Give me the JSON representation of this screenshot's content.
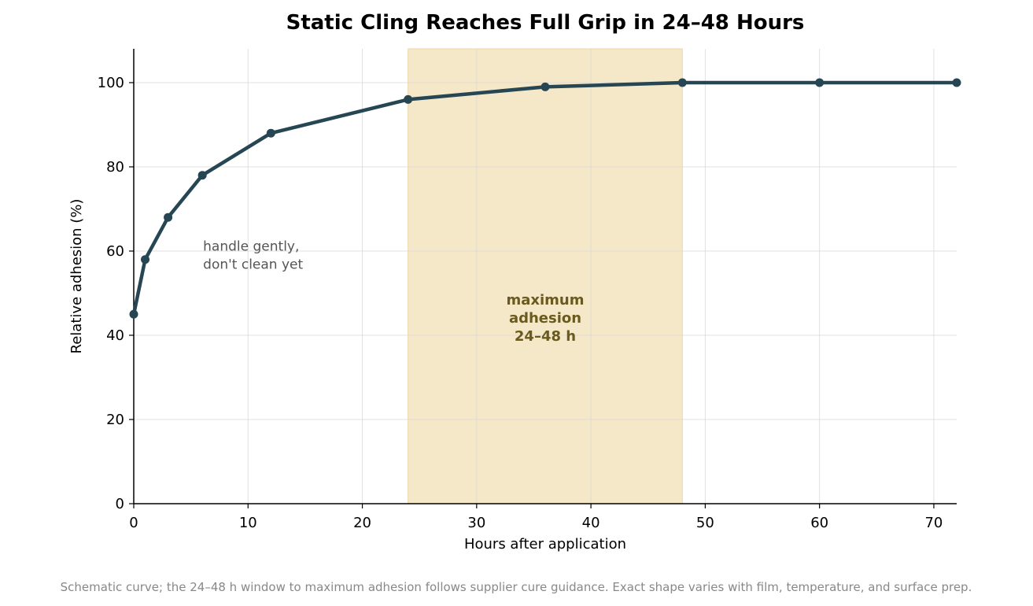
{
  "chart_data": {
    "type": "line",
    "title": "Static Cling Reaches Full Grip in 24–48 Hours",
    "xlabel": "Hours after application",
    "ylabel": "Relative adhesion (%)",
    "xlim": [
      0,
      72
    ],
    "ylim": [
      0,
      108
    ],
    "xticks": [
      0,
      10,
      20,
      30,
      40,
      50,
      60,
      70
    ],
    "yticks": [
      0,
      20,
      40,
      60,
      80,
      100
    ],
    "grid": true,
    "x": [
      0,
      1,
      3,
      6,
      12,
      24,
      36,
      48,
      60,
      72
    ],
    "series": [
      {
        "values": [
          45,
          58,
          68,
          78,
          88,
          96,
          99,
          100,
          100,
          100
        ],
        "color": "#264653"
      }
    ],
    "shaded_region": {
      "x_start": 24,
      "x_end": 48,
      "color": "#f5e8c8",
      "label_lines": [
        "maximum",
        "adhesion",
        "24–48 h"
      ]
    },
    "annotation": {
      "lines": [
        "handle gently,",
        "don't clean yet"
      ],
      "x": 6,
      "y": 59
    },
    "footnote": "Schematic curve; the 24–48 h window to maximum adhesion follows supplier cure guidance. Exact shape varies with film, temperature, and surface prep."
  }
}
